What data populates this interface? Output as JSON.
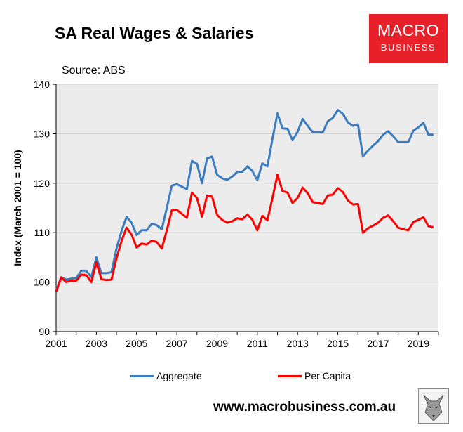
{
  "header": {
    "title": "SA Real Wages & Salaries",
    "source": "Source: ABS"
  },
  "logo": {
    "line1": "MACRO",
    "line2": "BUSINESS"
  },
  "footer": {
    "url": "www.macrobusiness.com.au"
  },
  "colors": {
    "aggregate": "#3a7cbf",
    "per_capita": "#ff0000",
    "plot_bg": "#ececec",
    "logo_bg": "#e8202a"
  },
  "chart_data": {
    "type": "line",
    "title": "SA Real Wages & Salaries",
    "xlabel": "",
    "ylabel": "Index (March 2001 = 100)",
    "xlim": [
      2001,
      2020
    ],
    "ylim": [
      90,
      140
    ],
    "yticks": [
      90,
      100,
      110,
      120,
      130,
      140
    ],
    "xticks": [
      2001,
      2003,
      2005,
      2007,
      2009,
      2011,
      2013,
      2015,
      2017,
      2019
    ],
    "grid": "horizontal",
    "legend_position": "bottom",
    "x": [
      2001.0,
      2001.25,
      2001.5,
      2001.75,
      2002.0,
      2002.25,
      2002.5,
      2002.75,
      2003.0,
      2003.25,
      2003.5,
      2003.75,
      2004.0,
      2004.25,
      2004.5,
      2004.75,
      2005.0,
      2005.25,
      2005.5,
      2005.75,
      2006.0,
      2006.25,
      2006.5,
      2006.75,
      2007.0,
      2007.25,
      2007.5,
      2007.75,
      2008.0,
      2008.25,
      2008.5,
      2008.75,
      2009.0,
      2009.25,
      2009.5,
      2009.75,
      2010.0,
      2010.25,
      2010.5,
      2010.75,
      2011.0,
      2011.25,
      2011.5,
      2011.75,
      2012.0,
      2012.25,
      2012.5,
      2012.75,
      2013.0,
      2013.25,
      2013.5,
      2013.75,
      2014.0,
      2014.25,
      2014.5,
      2014.75,
      2015.0,
      2015.25,
      2015.5,
      2015.75,
      2016.0,
      2016.25,
      2016.5,
      2016.75,
      2017.0,
      2017.25,
      2017.5,
      2017.75,
      2018.0,
      2018.25,
      2018.5,
      2018.75,
      2019.0,
      2019.25,
      2019.5,
      2019.75
    ],
    "series": [
      {
        "name": "Aggregate",
        "color": "#3a7cbf",
        "values": [
          98.2,
          101.0,
          100.5,
          100.7,
          100.8,
          102.3,
          102.3,
          101.0,
          105.0,
          101.8,
          101.8,
          102.0,
          106.8,
          110.3,
          113.2,
          112.0,
          109.5,
          110.5,
          110.5,
          111.8,
          111.5,
          110.7,
          115.0,
          119.5,
          119.8,
          119.3,
          118.8,
          124.5,
          123.9,
          120.0,
          125.0,
          125.4,
          121.7,
          121.0,
          120.7,
          121.3,
          122.3,
          122.3,
          123.4,
          122.5,
          120.6,
          124.0,
          123.4,
          129.0,
          134.1,
          131.1,
          131.0,
          128.7,
          130.4,
          133.0,
          131.6,
          130.3,
          130.3,
          130.3,
          132.5,
          133.2,
          134.8,
          134.0,
          132.3,
          131.6,
          131.9,
          125.4,
          126.6,
          127.6,
          128.5,
          129.8,
          130.5,
          129.5,
          128.3,
          128.3,
          128.3,
          130.6,
          131.3,
          132.2,
          129.8,
          129.8
        ]
      },
      {
        "name": "Per Capita",
        "color": "#ff0000",
        "values": [
          98.0,
          100.9,
          100.0,
          100.3,
          100.3,
          101.5,
          101.4,
          100.0,
          104.0,
          100.6,
          100.4,
          100.5,
          104.8,
          108.3,
          111.0,
          109.6,
          107.0,
          107.8,
          107.6,
          108.4,
          108.1,
          106.8,
          110.5,
          114.5,
          114.6,
          113.8,
          113.0,
          118.1,
          117.0,
          113.2,
          117.5,
          117.3,
          113.6,
          112.6,
          112.0,
          112.3,
          112.9,
          112.7,
          113.7,
          112.6,
          110.5,
          113.4,
          112.5,
          117.0,
          121.7,
          118.4,
          118.1,
          116.0,
          117.0,
          119.1,
          118.0,
          116.2,
          116.0,
          115.8,
          117.5,
          117.7,
          119.0,
          118.2,
          116.5,
          115.7,
          115.8,
          110.0,
          110.9,
          111.4,
          112.0,
          113.0,
          113.5,
          112.3,
          111.0,
          110.7,
          110.5,
          112.1,
          112.6,
          113.1,
          111.3,
          111.1
        ]
      }
    ]
  }
}
